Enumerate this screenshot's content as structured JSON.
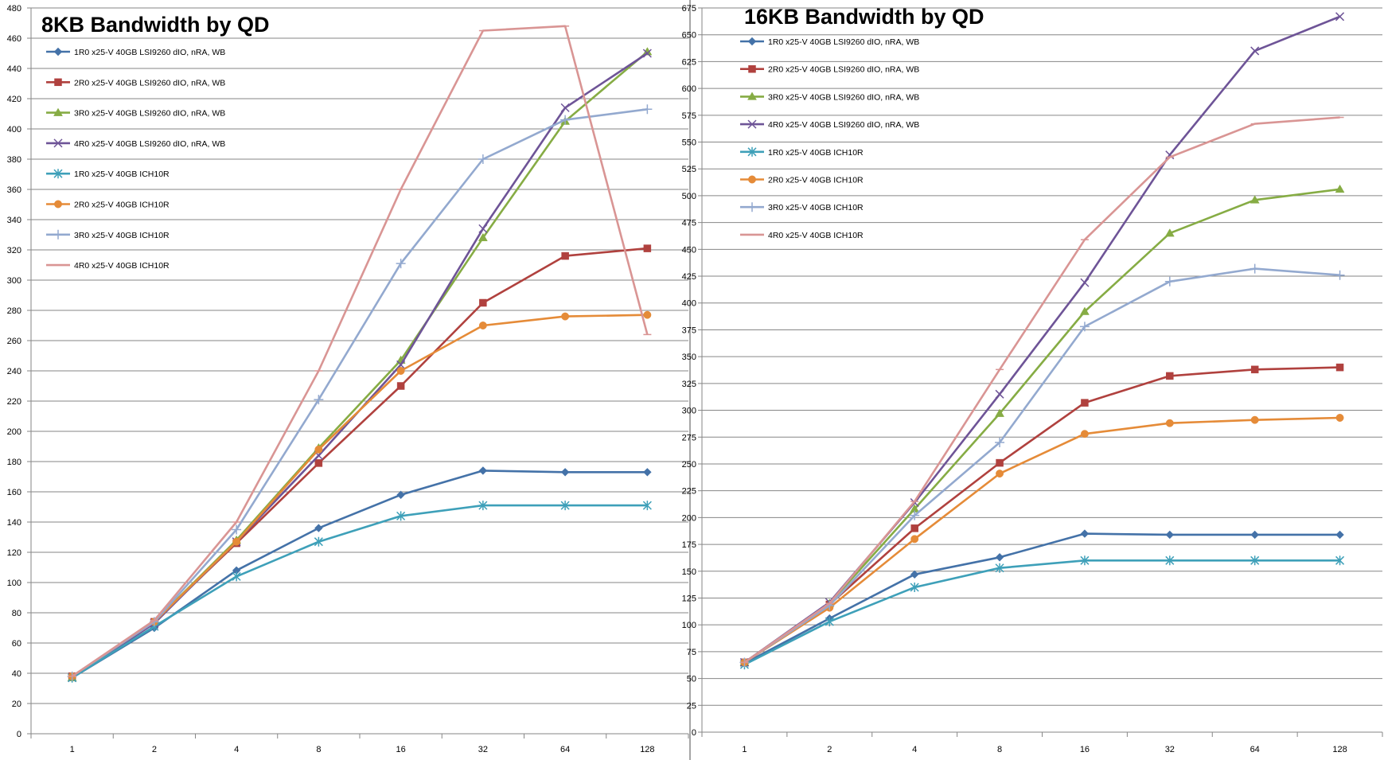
{
  "colors": {
    "background": "#ffffff",
    "grid": "#868686",
    "axis": "#868686",
    "divider": "#a6a6a6"
  },
  "chart_data": [
    {
      "type": "line",
      "title": "8KB Bandwidth by QD",
      "xlabel": "",
      "ylabel": "",
      "categories": [
        "1",
        "2",
        "4",
        "8",
        "16",
        "32",
        "64",
        "128"
      ],
      "ylim": [
        0,
        480
      ],
      "ytick_step": 20,
      "grid": true,
      "legend_position": "top-left",
      "series": [
        {
          "name": "1R0 x25-V 40GB LSI9260 dIO, nRA, WB",
          "color": "#4472a8",
          "marker": "diamond",
          "values": [
            37,
            70,
            108,
            136,
            158,
            174,
            173,
            173
          ]
        },
        {
          "name": "2R0 x25-V 40GB LSI9260 dIO, nRA, WB",
          "color": "#b0413e",
          "marker": "square",
          "values": [
            38,
            74,
            126,
            179,
            230,
            285,
            316,
            321
          ]
        },
        {
          "name": "3R0 x25-V 40GB LSI9260 dIO, nRA, WB",
          "color": "#86ac44",
          "marker": "triangle",
          "values": [
            37,
            74,
            128,
            189,
            247,
            328,
            405,
            451
          ]
        },
        {
          "name": "4R0 x25-V 40GB LSI9260 dIO, nRA, WB",
          "color": "#6e5497",
          "marker": "x",
          "values": [
            37,
            73,
            127,
            184,
            244,
            334,
            414,
            450
          ]
        },
        {
          "name": "1R0 x25-V 40GB ICH10R",
          "color": "#3ea0b9",
          "marker": "star",
          "values": [
            37,
            71,
            104,
            127,
            144,
            151,
            151,
            151
          ]
        },
        {
          "name": "2R0 x25-V 40GB ICH10R",
          "color": "#e58b38",
          "marker": "circle",
          "values": [
            38,
            74,
            127,
            188,
            240,
            270,
            276,
            277
          ]
        },
        {
          "name": "3R0 x25-V 40GB ICH10R",
          "color": "#93a9cf",
          "marker": "plus",
          "values": [
            38,
            74,
            135,
            221,
            311,
            380,
            406,
            413
          ]
        },
        {
          "name": "4R0 x25-V 40GB ICH10R",
          "color": "#d99594",
          "marker": "dash",
          "values": [
            38,
            75,
            140,
            240,
            360,
            465,
            468,
            264
          ]
        }
      ]
    },
    {
      "type": "line",
      "title": "16KB Bandwidth by QD",
      "xlabel": "",
      "ylabel": "",
      "categories": [
        "1",
        "2",
        "4",
        "8",
        "16",
        "32",
        "64",
        "128"
      ],
      "ylim": [
        0,
        675
      ],
      "ytick_step": 25,
      "grid": true,
      "legend_position": "top-left",
      "series": [
        {
          "name": "1R0 x25-V 40GB LSI9260 dIO, nRA, WB",
          "color": "#4472a8",
          "marker": "diamond",
          "values": [
            64,
            106,
            147,
            163,
            185,
            184,
            184,
            184
          ]
        },
        {
          "name": "2R0 x25-V 40GB LSI9260 dIO, nRA, WB",
          "color": "#b0413e",
          "marker": "square",
          "values": [
            65,
            119,
            190,
            251,
            307,
            332,
            338,
            340
          ]
        },
        {
          "name": "3R0 x25-V 40GB LSI9260 dIO, nRA, WB",
          "color": "#86ac44",
          "marker": "triangle",
          "values": [
            65,
            120,
            208,
            297,
            392,
            465,
            496,
            506
          ]
        },
        {
          "name": "4R0 x25-V 40GB LSI9260 dIO, nRA, WB",
          "color": "#6e5497",
          "marker": "x",
          "values": [
            65,
            121,
            214,
            315,
            419,
            538,
            635,
            667
          ]
        },
        {
          "name": "1R0 x25-V 40GB ICH10R",
          "color": "#3ea0b9",
          "marker": "star",
          "values": [
            63,
            103,
            135,
            153,
            160,
            160,
            160,
            160
          ]
        },
        {
          "name": "2R0 x25-V 40GB ICH10R",
          "color": "#e58b38",
          "marker": "circle",
          "values": [
            65,
            116,
            180,
            241,
            278,
            288,
            291,
            293
          ]
        },
        {
          "name": "3R0 x25-V 40GB ICH10R",
          "color": "#93a9cf",
          "marker": "plus",
          "values": [
            65,
            118,
            202,
            270,
            378,
            420,
            432,
            426
          ]
        },
        {
          "name": "4R0 x25-V 40GB ICH10R",
          "color": "#d99594",
          "marker": "dash",
          "values": [
            65,
            120,
            215,
            338,
            459,
            536,
            567,
            573
          ]
        }
      ]
    }
  ]
}
